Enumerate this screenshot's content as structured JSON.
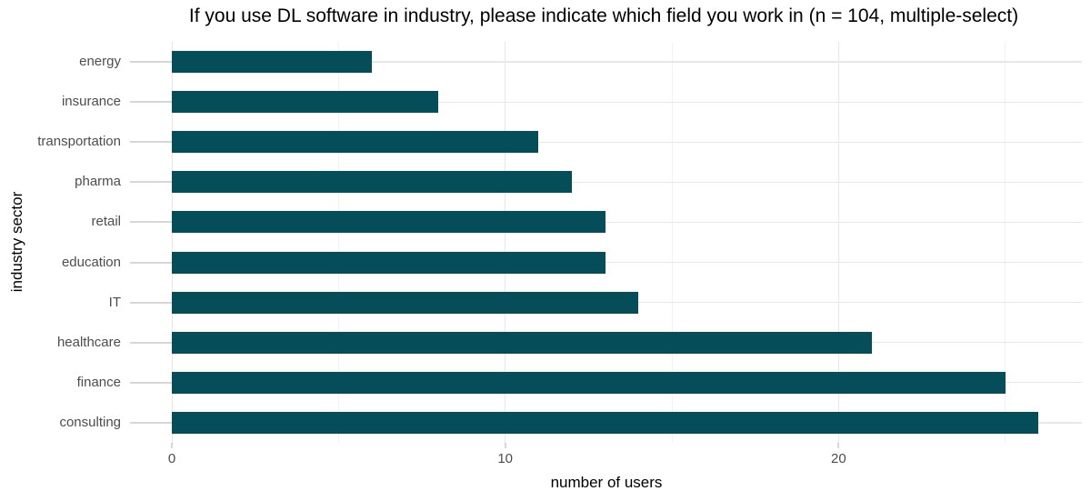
{
  "chart_data": {
    "type": "bar",
    "orientation": "horizontal",
    "title": "If you use DL software in industry, please indicate which field you work in (n = 104, multiple-select)",
    "xlabel": "number of users",
    "ylabel": "industry sector",
    "categories": [
      "energy",
      "insurance",
      "transportation",
      "pharma",
      "retail",
      "education",
      "IT",
      "healthcare",
      "finance",
      "consulting"
    ],
    "values": [
      6,
      8,
      11,
      12,
      13,
      13,
      14,
      21,
      25,
      26
    ],
    "xlim": [
      0,
      27.3
    ],
    "x_major_ticks": [
      0,
      10,
      20
    ],
    "x_minor_ticks": [
      5,
      15,
      25
    ],
    "grid": true,
    "legend": false,
    "colors": {
      "bar": "#054d58",
      "grid_major": "#e7e7e7",
      "grid_minor": "#f2f2f2",
      "tick": "#d6d6d6",
      "axis_text": "#4d4d4d",
      "title_text": "#000000",
      "background": "#ffffff"
    }
  }
}
